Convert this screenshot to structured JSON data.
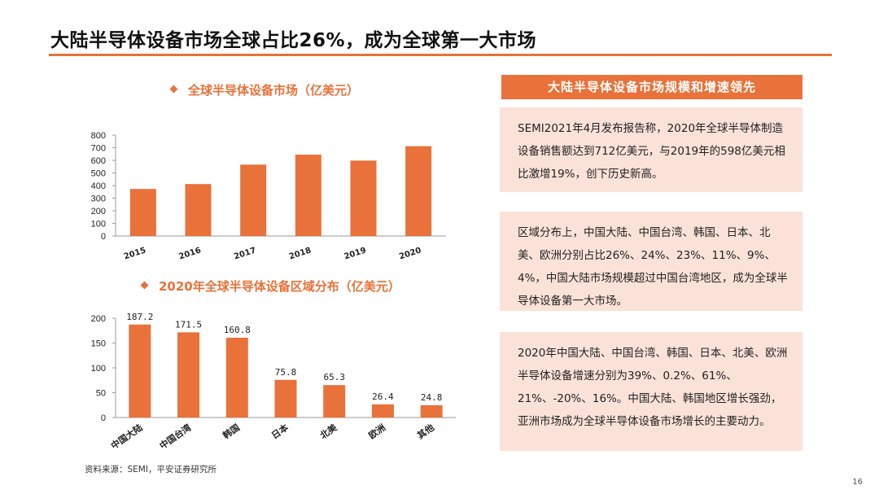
{
  "header": {
    "title": "大陆半导体设备市场全球占比26%，成为全球第一大市场"
  },
  "chart_data": [
    {
      "type": "bar",
      "title": "全球半导体设备市场（亿美元）",
      "categories": [
        "2015",
        "2016",
        "2017",
        "2018",
        "2019",
        "2020"
      ],
      "values": [
        373,
        412,
        566,
        645,
        598,
        712
      ],
      "ylim": [
        0,
        800
      ],
      "yticks": [
        0,
        100,
        200,
        300,
        400,
        500,
        600,
        700,
        800
      ],
      "color": "#e8723a",
      "grid": false
    },
    {
      "type": "bar",
      "title": "2020年全球半导体设备区域分布（亿美元）",
      "categories": [
        "中国大陆",
        "中国台湾",
        "韩国",
        "日本",
        "北美",
        "欧洲",
        "其他"
      ],
      "values": [
        187.2,
        171.5,
        160.8,
        75.8,
        65.3,
        26.4,
        24.8
      ],
      "data_labels": [
        "187.2",
        "171.5",
        "160.8",
        "75.8",
        "65.3",
        "26.4",
        "24.8"
      ],
      "ylim": [
        0,
        200
      ],
      "yticks": [
        0,
        50,
        100,
        150,
        200
      ],
      "color": "#e8723a",
      "grid": false
    }
  ],
  "right_panel": {
    "header": "大陆半导体设备市场规模和增速领先",
    "paragraphs": [
      "SEMI2021年4月发布报告称，2020年全球半导体制造设备销售额达到712亿美元，与2019年的598亿美元相比激增19%，创下历史新高。",
      "区域分布上，中国大陆、中国台湾、韩国、日本、北美、欧洲分别占比26%、24%、23%、11%、9%、4%，中国大陆市场规模超过中国台湾地区，成为全球半导体设备第一大市场。",
      "2020年中国大陆、中国台湾、韩国、日本、北美、欧洲半导体设备增速分别为39%、0.2%、61%、21%、-20%、16%。中国大陆、韩国地区增长强劲，亚洲市场成为全球半导体设备市场增长的主要动力。"
    ]
  },
  "footer": {
    "source": "资料来源：SEMI，平安证券研究所",
    "page_number": "16"
  }
}
